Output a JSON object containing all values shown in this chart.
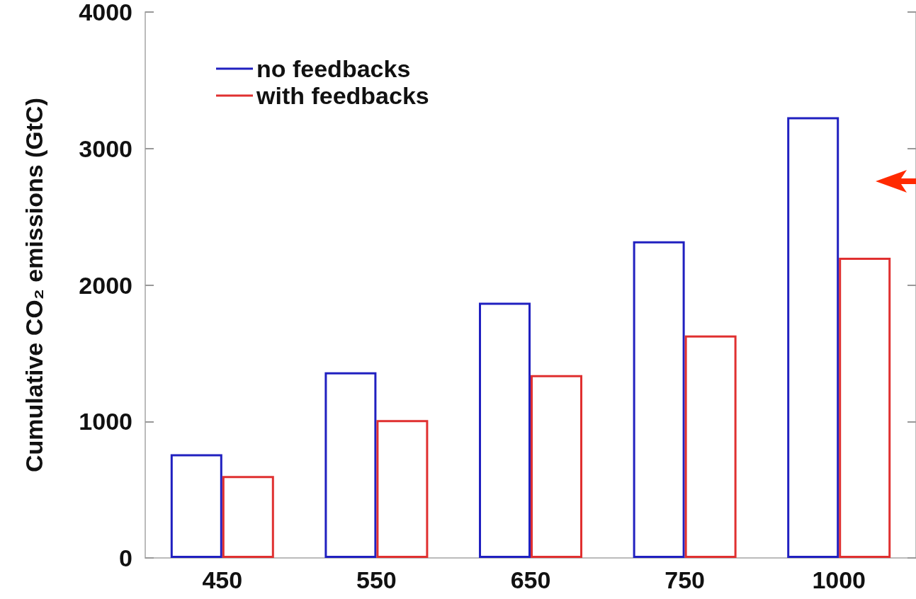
{
  "chart_data": {
    "type": "bar",
    "ylabel": "Cumulative CO₂ emissions (GtC)",
    "categories": [
      "450",
      "550",
      "650",
      "750",
      "1000"
    ],
    "series": [
      {
        "name": "no feedbacks",
        "color": "#2020c0",
        "values": [
          760,
          1360,
          1870,
          2320,
          3230
        ]
      },
      {
        "name": "with feedbacks",
        "color": "#e03030",
        "values": [
          600,
          1010,
          1340,
          1630,
          2200
        ]
      }
    ],
    "ylim": [
      0,
      4000
    ],
    "yticks": [
      0,
      1000,
      2000,
      3000,
      4000
    ],
    "grid": false,
    "legend": "top left"
  }
}
